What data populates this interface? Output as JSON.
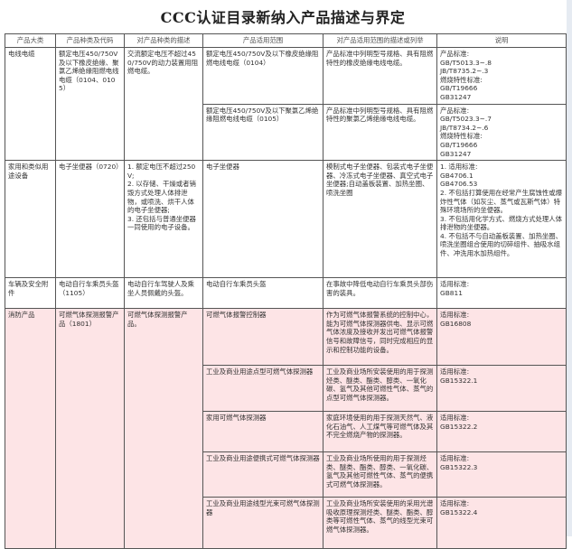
{
  "title": "CCC认证目录新纳入产品描述与界定",
  "headers": [
    "产品大类",
    "产品种类及代码",
    "对产品种类的描述",
    "产品适用范围",
    "对产品适用范围的描述或列举",
    "说明"
  ],
  "highlight_color": "#fde4e6",
  "groups": [
    {
      "category": "电线电缆",
      "product": "额定电压450/750V及以下橡皮绝缘、聚氯乙烯绝缘阻燃电线电缆（0104、0105）",
      "description": "交流额定电压不超过450/750V的动力装置用阻燃电缆。",
      "highlight": false,
      "rows": [
        {
          "scope": "额定电压450/750V及以下橡皮绝缘阻燃电线电缆（0104）",
          "scope_desc": "产品标准中列明型号规格、具有阻燃特性的橡皮绝缘电线电缆。",
          "notes": "产品标准:\nGB/T5013.3~.8\nJB/T8735.2~.3\n燃烧特性标准:\nGB/T19666\nGB31247"
        },
        {
          "scope": "额定电压450/750V及以下聚氯乙烯绝缘阻燃电线电缆（0105）",
          "scope_desc": "产品标准中列明型号规格、具有阻燃特性的聚氯乙烯绝缘电线电缆。",
          "notes": "产品标准:\nGB/T5023.3~.7\nJB/T8734.2~.6\n燃烧特性标准:\nGB/T19666\nGB31247"
        }
      ]
    },
    {
      "category": "家用和类似用途设备",
      "product": "电子坐便器（0720）",
      "description": "1. 额定电压不超过250V;\n2. 以存储、干燥或者销毁方式处理人体排泄物，或喷洗、烘干人体的电子坐便器;\n3. 还包括与普通坐便器一同使用的电子设备。",
      "highlight": false,
      "rows": [
        {
          "scope": "电子坐便器",
          "scope_desc": "模制式电子坐便器、包装式电子坐便器、冷冻式电子坐便器、真空式电子坐便器;自动盖板装置、加热坐圈、喷洗坐圈",
          "notes": "1. 适用标准:\nGB4706.1\nGB4706.53\n2. 不包括打算使用在经常产生腐蚀性或爆炸性气体（如灰尘、蒸气或瓦斯气体）特殊环境场所的坐便器。\n3. 不包括用化学方式、燃烧方式处理人体排泄物的坐便器。\n4. 不包括不与自动盖板装置、加热坐圈、喷洗坐圈组合使用的切碎组件、抽吸水组件、冲洗用水加热组件。"
        }
      ]
    },
    {
      "category": "车辆及安全附件",
      "product": "电动自行车乘员头盔（1105）",
      "description": "电动自行车驾驶人及乘坐人员佩戴的头盔。",
      "highlight": false,
      "rows": [
        {
          "scope": "电动自行车乘员头盔",
          "scope_desc": "在事故中降低电动自行车乘员头部伤害的装具。",
          "notes": "适用标准:\nGB811"
        }
      ]
    },
    {
      "category": "消防产品",
      "product": "可燃气体探测报警产品（1801）",
      "description": "可燃气体探测报警产品。",
      "highlight": true,
      "rows": [
        {
          "scope": "可燃气体报警控制器",
          "scope_desc": "作为可燃气体报警系统的控制中心，能为可燃气体探测器供电、显示可燃气体浓度及接收并发出可燃气体报警信号和故障信号，同时完成相应的显示和控制功能的设备。",
          "notes": "适用标准:\nGB16808"
        },
        {
          "scope": "工业及商业用途点型可燃气体探测器",
          "scope_desc": "工业及商业场所安装使用的用于探测烃类、醚类、酯类、醇类、一氧化碳、氢气及其他可燃性气体、蒸气的点型可燃气体探测器。",
          "notes": "适用标准:\nGB15322.1"
        },
        {
          "scope": "家用可燃气体探测器",
          "scope_desc": "家庭环境使用的用于探测天然气、液化石油气、人工煤气等可燃气体及其不完全燃烧产物的探测器。",
          "notes": "适用标准:\nGB15322.2"
        },
        {
          "scope": "工业及商业用途便携式可燃气体探测器",
          "scope_desc": "工业及商业场所使用的用于探测烃类、醚类、酯类、醇类、一氧化碳、氢气及其他可燃性气体、蒸气的便携式可燃气体探测器。",
          "notes": "适用标准:\nGB15322.3"
        },
        {
          "scope": "工业及商业用途线型光束可燃气体探测器",
          "scope_desc": "工业及商业场所安装使用的采用光谱吸收原理探测烃类、醚类、酯类、醇类等可燃性气体、蒸气的线型光束可燃气体探测器。",
          "notes": "适用标准:\nGB15322.4"
        }
      ]
    }
  ]
}
